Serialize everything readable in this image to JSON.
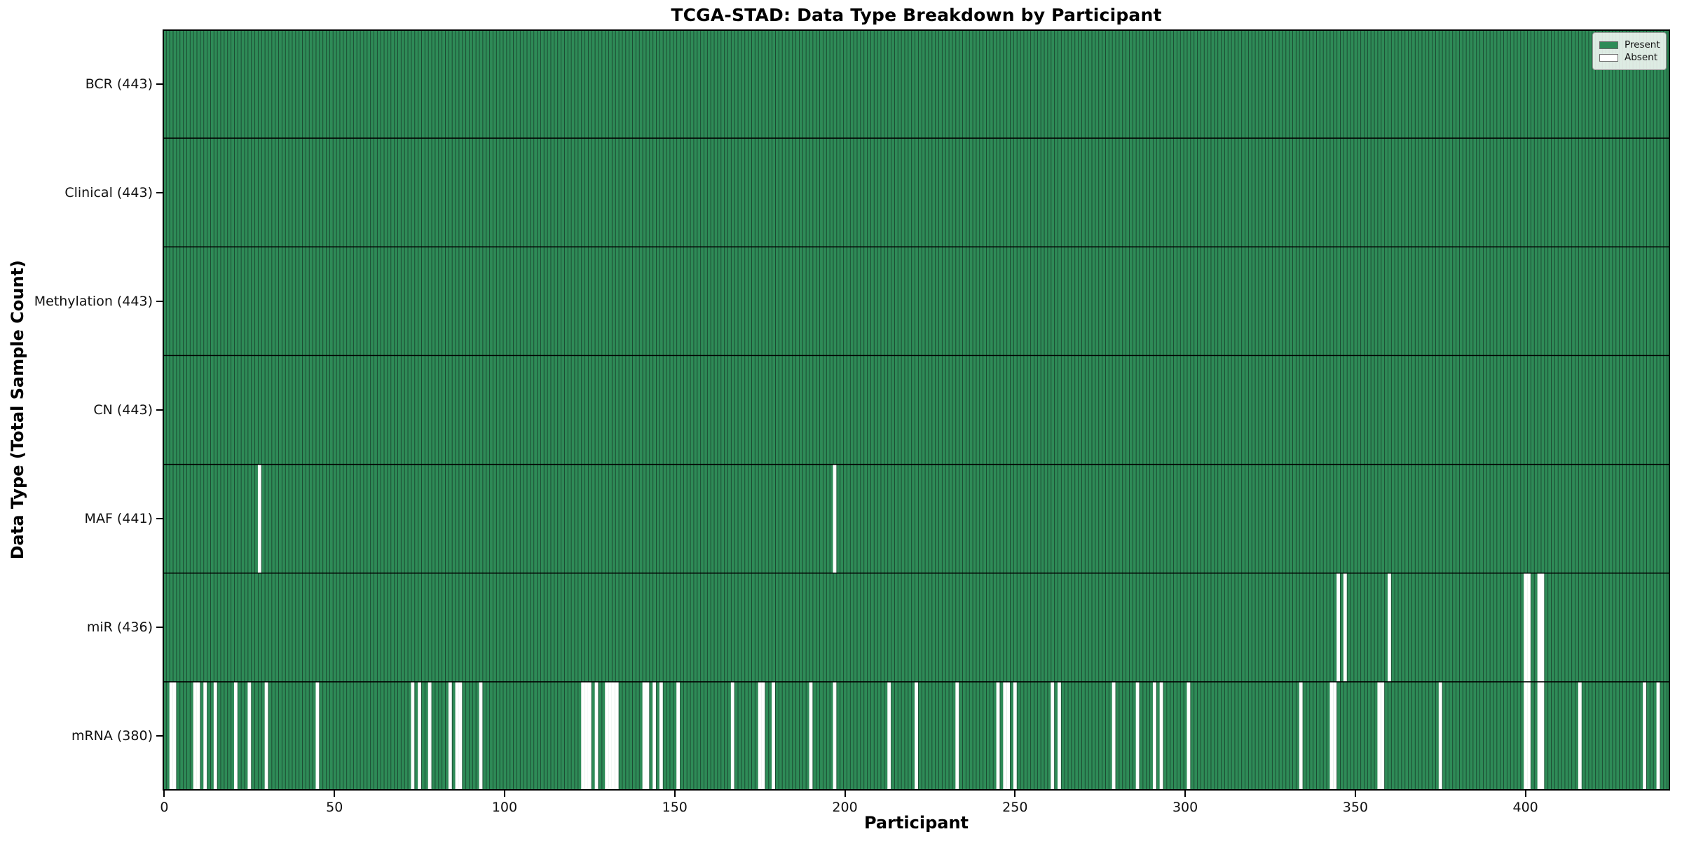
{
  "chart_data": {
    "type": "heatmap",
    "title": "TCGA-STAD: Data Type Breakdown by Participant",
    "xlabel": "Participant",
    "ylabel": "Data Type (Total Sample Count)",
    "legend": {
      "present_label": "Present",
      "absent_label": "Absent"
    },
    "legend_position": "upper right",
    "n_participants": 443,
    "x_ticks": [
      0,
      50,
      100,
      150,
      200,
      250,
      300,
      350,
      400
    ],
    "rows": [
      {
        "name": "BCR",
        "label": "BCR (443)",
        "total": 443,
        "absent": []
      },
      {
        "name": "Clinical",
        "label": "Clinical (443)",
        "total": 443,
        "absent": []
      },
      {
        "name": "Methylation",
        "label": "Methylation (443)",
        "total": 443,
        "absent": []
      },
      {
        "name": "CN",
        "label": "CN (443)",
        "total": 443,
        "absent": []
      },
      {
        "name": "MAF",
        "label": "MAF (441)",
        "total": 441,
        "absent": [
          28,
          197
        ]
      },
      {
        "name": "miR",
        "label": "miR (436)",
        "total": 436,
        "absent": [
          345,
          347,
          360,
          400,
          401,
          404,
          405
        ]
      },
      {
        "name": "mRNA",
        "label": "mRNA (380)",
        "total": 380,
        "absent": [
          2,
          3,
          9,
          10,
          12,
          15,
          21,
          25,
          30,
          45,
          73,
          75,
          78,
          84,
          86,
          87,
          93,
          123,
          124,
          125,
          127,
          130,
          131,
          132,
          133,
          141,
          142,
          144,
          146,
          151,
          167,
          175,
          176,
          179,
          190,
          197,
          213,
          221,
          233,
          245,
          247,
          248,
          250,
          261,
          263,
          279,
          286,
          291,
          293,
          301,
          334,
          343,
          344,
          357,
          358,
          375,
          400,
          401,
          404,
          405,
          416,
          435,
          439
        ]
      }
    ]
  },
  "colors": {
    "present": "#2e8b57",
    "absent": "#ffffff",
    "bar_edge": "#19442e",
    "row_separator": "#000000",
    "plot_border": "#000000"
  }
}
